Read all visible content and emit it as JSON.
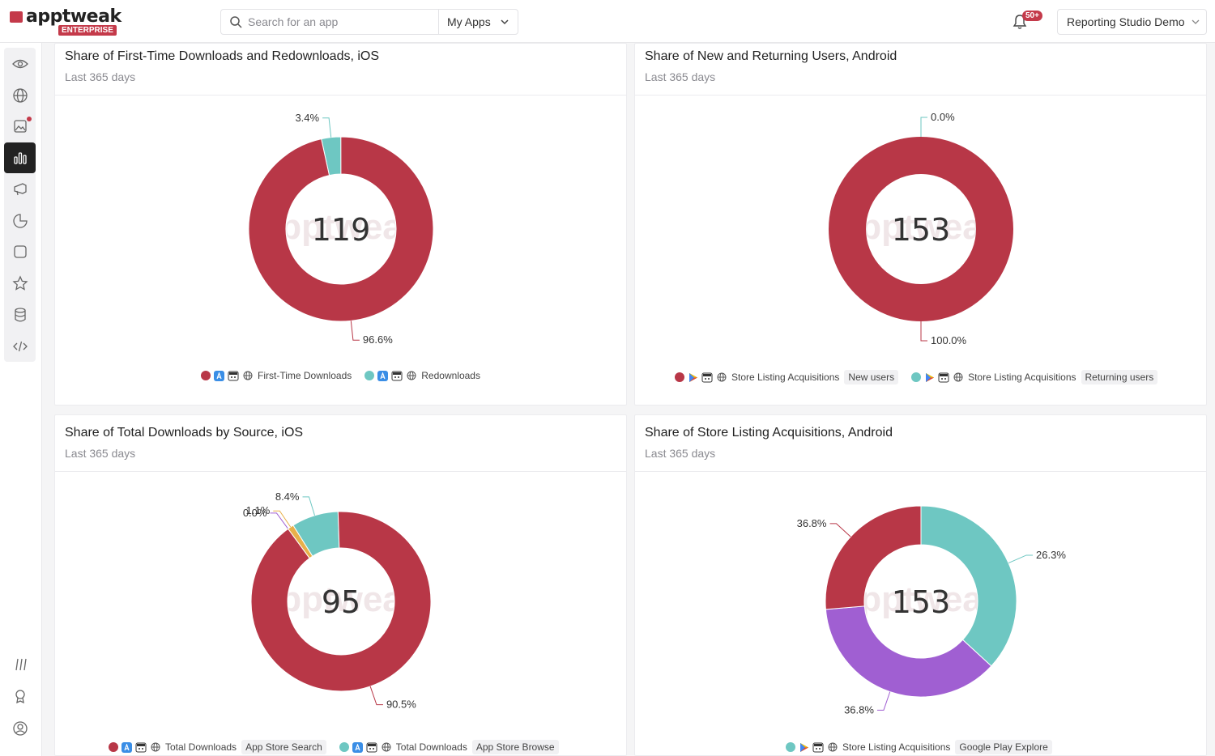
{
  "brand": {
    "name": "apptweak",
    "badge": "ENTERPRISE",
    "accent": "#c43a4a"
  },
  "search": {
    "placeholder": "Search for an app",
    "scope": "My Apps"
  },
  "notifications": {
    "count": "50+"
  },
  "workspace": {
    "label": "Reporting Studio Demo"
  },
  "sidebar": {
    "items": [
      {
        "icon": "eye-icon",
        "active": false
      },
      {
        "icon": "globe-icon",
        "active": false
      },
      {
        "icon": "image-icon",
        "active": false,
        "badge": true
      },
      {
        "icon": "bar-chart-icon",
        "active": true
      },
      {
        "icon": "megaphone-icon",
        "active": false
      },
      {
        "icon": "pie-icon",
        "active": false
      },
      {
        "icon": "square-icon",
        "active": false
      },
      {
        "icon": "star-icon",
        "active": false
      },
      {
        "icon": "database-icon",
        "active": false
      },
      {
        "icon": "code-icon",
        "active": false
      }
    ],
    "bottom": [
      "slashes-icon",
      "award-icon",
      "user-circle-icon"
    ]
  },
  "cards": [
    {
      "title": "Share of First-Time Downloads and Redownloads, iOS",
      "subtitle": "Last 365 days",
      "center": "119",
      "labels": [
        "3.4%",
        "96.6%"
      ],
      "legend": [
        {
          "color": "#b83747",
          "store": "app-store",
          "text": "First-Time Downloads",
          "tag": ""
        },
        {
          "color": "#6ec7c2",
          "store": "app-store",
          "text": "Redownloads",
          "tag": ""
        }
      ]
    },
    {
      "title": "Share of New and Returning Users, Android",
      "subtitle": "Last 365 days",
      "center": "153",
      "labels": [
        "0.0%",
        "100.0%"
      ],
      "legend": [
        {
          "color": "#b83747",
          "store": "google-play",
          "text": "Store Listing Acquisitions",
          "tag": "New users"
        },
        {
          "color": "#6ec7c2",
          "store": "google-play",
          "text": "Store Listing Acquisitions",
          "tag": "Returning users"
        }
      ]
    },
    {
      "title": "Share of Total Downloads by Source, iOS",
      "subtitle": "Last 365 days",
      "center": "95",
      "labels": [
        "0.0%",
        "1.1%",
        "8.4%",
        "90.5%"
      ],
      "legend": [
        {
          "color": "#b83747",
          "store": "app-store",
          "text": "Total Downloads",
          "tag": "App Store Search"
        },
        {
          "color": "#6ec7c2",
          "store": "app-store",
          "text": "Total Downloads",
          "tag": "App Store Browse"
        }
      ]
    },
    {
      "title": "Share of Store Listing Acquisitions, Android",
      "subtitle": "Last 365 days",
      "center": "153",
      "labels": [
        "26.3%",
        "36.8%",
        "36.8%"
      ],
      "legend": [
        {
          "color": "#6ec7c2",
          "store": "google-play",
          "text": "Store Listing Acquisitions",
          "tag": "Google Play Explore"
        }
      ]
    }
  ],
  "chart_data": [
    {
      "type": "pie",
      "title": "Share of First-Time Downloads and Redownloads, iOS",
      "center_total": 119,
      "slices": [
        {
          "name": "Redownloads",
          "value": 3.4,
          "color": "#6ec7c2"
        },
        {
          "name": "First-Time Downloads",
          "value": 96.6,
          "color": "#b83747"
        }
      ]
    },
    {
      "type": "pie",
      "title": "Share of New and Returning Users, Android",
      "center_total": 153,
      "slices": [
        {
          "name": "Returning users",
          "value": 0.0,
          "color": "#6ec7c2"
        },
        {
          "name": "New users",
          "value": 100.0,
          "color": "#b83747"
        }
      ]
    },
    {
      "type": "pie",
      "title": "Share of Total Downloads by Source, iOS",
      "center_total": 95,
      "slices": [
        {
          "name": "",
          "value": 0.0,
          "color": "#a05fd2"
        },
        {
          "name": "",
          "value": 1.1,
          "color": "#e8b04a"
        },
        {
          "name": "App Store Browse",
          "value": 8.4,
          "color": "#6ec7c2"
        },
        {
          "name": "App Store Search",
          "value": 90.5,
          "color": "#b83747"
        }
      ]
    },
    {
      "type": "pie",
      "title": "Share of Store Listing Acquisitions, Android",
      "center_total": 153,
      "slices": [
        {
          "name": "Google Play Explore",
          "value": 36.8,
          "color": "#6ec7c2"
        },
        {
          "name": "",
          "value": 36.8,
          "color": "#a05fd2"
        },
        {
          "name": "",
          "value": 26.3,
          "color": "#b83747"
        }
      ]
    }
  ]
}
